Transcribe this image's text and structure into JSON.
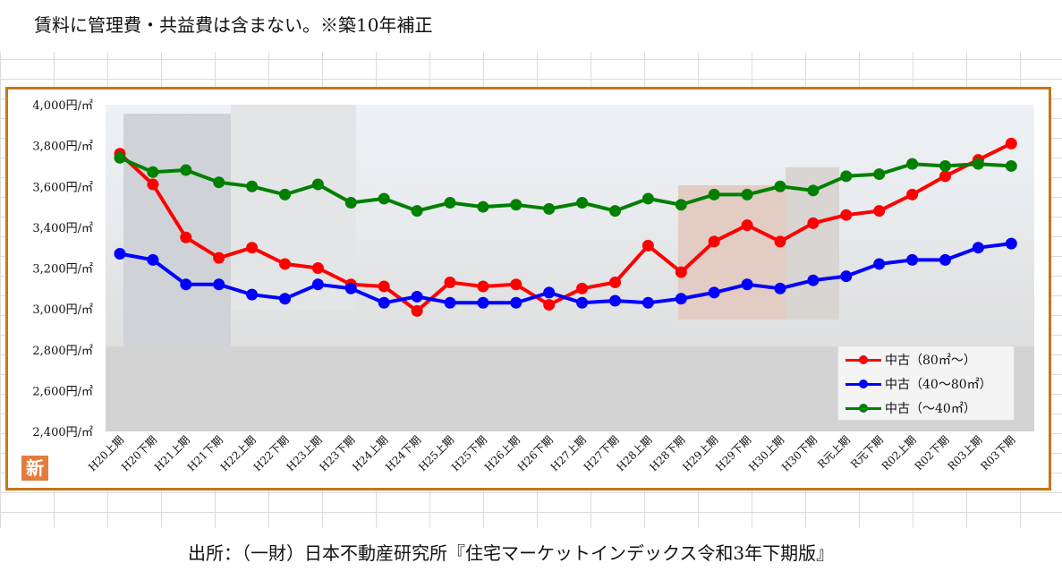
{
  "header_note": "賃料に管理費・共益費は含まない。※築10年補正",
  "source_note": "出所：（一財）日本不動産研究所『住宅マーケットインデックス令和3年下期版』",
  "badge_text": "新",
  "colors": {
    "frame": "#c8751a",
    "series": [
      "#ff0000",
      "#0000ff",
      "#008000"
    ]
  },
  "chart_data": {
    "type": "line",
    "title": "",
    "xlabel": "",
    "ylabel": "",
    "ylim": [
      2400,
      4000
    ],
    "yticks": [
      2400,
      2600,
      2800,
      3000,
      3200,
      3400,
      3600,
      3800,
      4000
    ],
    "ytick_labels": [
      "2,400円/㎡",
      "2,600円/㎡",
      "2,800円/㎡",
      "3,000円/㎡",
      "3,200円/㎡",
      "3,400円/㎡",
      "3,600円/㎡",
      "3,800円/㎡",
      "4,000円/㎡"
    ],
    "categories": [
      "H20上期",
      "H20下期",
      "H21上期",
      "H21下期",
      "H22上期",
      "H22下期",
      "H23上期",
      "H23下期",
      "H24上期",
      "H24下期",
      "H25上期",
      "H25下期",
      "H26上期",
      "H26下期",
      "H27上期",
      "H27下期",
      "H28上期",
      "H28下期",
      "H29上期",
      "H29下期",
      "H30上期",
      "H30下期",
      "R元上期",
      "R元下期",
      "R02上期",
      "R02下期",
      "R03上期",
      "R03下期"
    ],
    "series": [
      {
        "name": "中古（80㎡～）",
        "color": "#ff0000",
        "values": [
          3760,
          3610,
          3350,
          3250,
          3300,
          3220,
          3200,
          3120,
          3110,
          2990,
          3130,
          3110,
          3120,
          3020,
          3100,
          3130,
          3310,
          3180,
          3330,
          3410,
          3330,
          3420,
          3460,
          3480,
          3560,
          3650,
          3730,
          3810
        ]
      },
      {
        "name": "中古（40～80㎡）",
        "color": "#0000ff",
        "values": [
          3270,
          3240,
          3120,
          3120,
          3070,
          3050,
          3120,
          3100,
          3030,
          3060,
          3030,
          3030,
          3030,
          3080,
          3030,
          3040,
          3030,
          3050,
          3080,
          3120,
          3100,
          3140,
          3160,
          3220,
          3240,
          3240,
          3300,
          3320
        ]
      },
      {
        "name": "中古（～40㎡）",
        "color": "#008000",
        "values": [
          3740,
          3670,
          3680,
          3620,
          3600,
          3560,
          3610,
          3520,
          3540,
          3480,
          3520,
          3500,
          3510,
          3490,
          3520,
          3480,
          3540,
          3510,
          3560,
          3560,
          3600,
          3580,
          3650,
          3660,
          3710,
          3700,
          3710,
          3700
        ]
      }
    ],
    "legend_position": "bottom-right",
    "grid": false
  }
}
